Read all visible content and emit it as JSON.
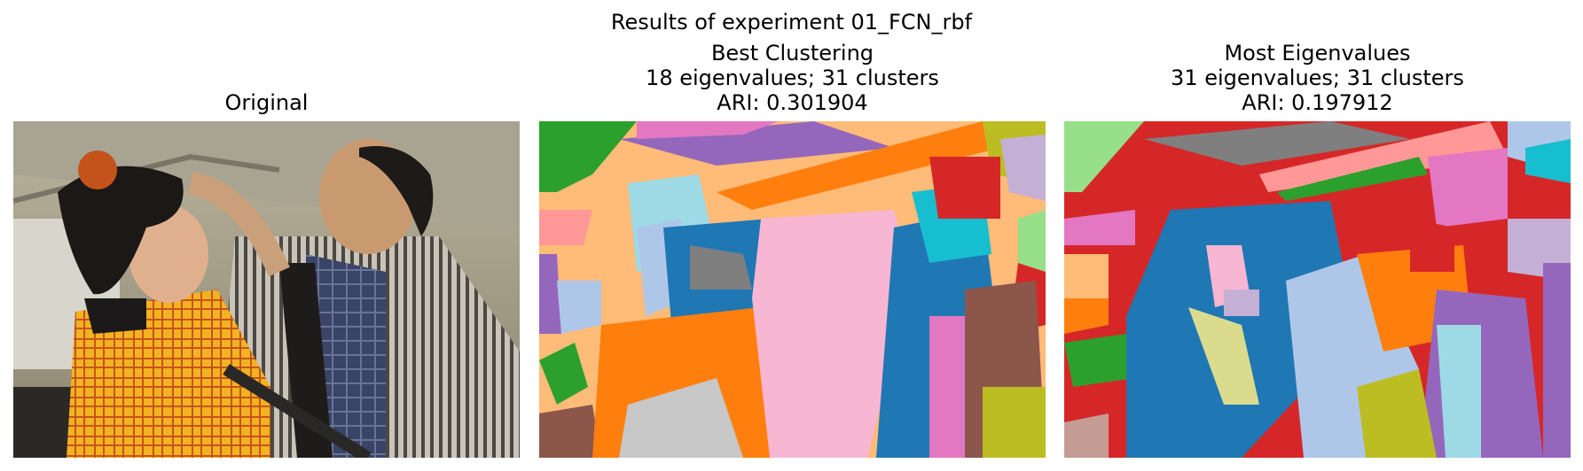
{
  "figure": {
    "suptitle": "Results of experiment 01_FCN_rbf"
  },
  "panels": [
    {
      "title_lines": [
        "Original"
      ]
    },
    {
      "title_lines": [
        "Best Clustering",
        "18 eigenvalues; 31 clusters",
        "ARI: 0.301904"
      ]
    },
    {
      "title_lines": [
        "Most Eigenvalues",
        "31 eigenvalues; 31 clusters",
        "ARI: 0.197912"
      ]
    }
  ]
}
